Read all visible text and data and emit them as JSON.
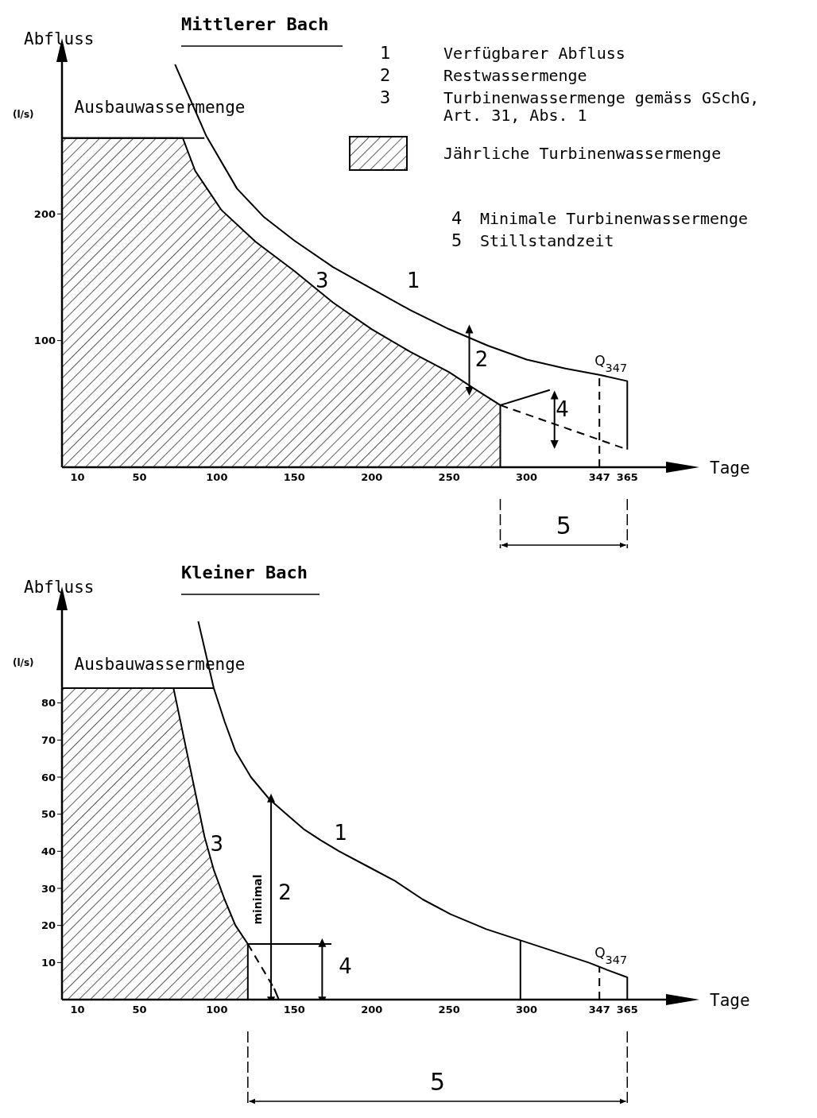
{
  "chart_data": [
    {
      "type": "line",
      "title": "Mittlerer Bach",
      "xlabel": "Tage",
      "ylabel": "Abfluss",
      "xlim": [
        0,
        390
      ],
      "ylim": [
        0,
        320
      ],
      "xticks": [
        10,
        50,
        100,
        150,
        200,
        250,
        300,
        347,
        365
      ],
      "yticks": [
        100,
        200
      ],
      "grid": false,
      "legend": "top right",
      "marker": "none",
      "line_style": "solid",
      "series": [
        {
          "color": "#000000",
          "x": [
            73,
            93,
            113,
            130,
            150,
            175,
            200,
            225,
            250,
            275,
            300,
            325,
            347,
            365,
            365
          ],
          "values": [
            318,
            262,
            220,
            198,
            179,
            158,
            141,
            124,
            109,
            96,
            85,
            78,
            73,
            68,
            14
          ]
        },
        {
          "type": "area",
          "name": "Jährliche Turbinenwassermenge",
          "color": "#000000",
          "x": [
            0,
            78,
            86,
            103,
            125,
            150,
            175,
            200,
            225,
            250,
            265,
            283,
            283
          ],
          "values": [
            260,
            260,
            234,
            203,
            178,
            155,
            130,
            109,
            91,
            75,
            63,
            49,
            0
          ]
        },
        {
          "color": "#000000",
          "x": [
            0,
            92
          ],
          "values": [
            260,
            260
          ]
        },
        {
          "color": "#000000",
          "line_style": "dashed",
          "x": [
            283,
            365
          ],
          "values": [
            49,
            14
          ]
        },
        {
          "color": "#000000",
          "x": [
            283,
            315
          ],
          "values": [
            49,
            61
          ]
        },
        {
          "color": "#000000",
          "marker": "triangle",
          "x": [
            318,
            318
          ],
          "values": [
            56,
            19
          ]
        },
        {
          "color": "#000000",
          "marker": "triangle",
          "x": [
            263,
            263
          ],
          "values": [
            108,
            61
          ]
        }
      ],
      "ref_lines": [
        {
          "axis": "x",
          "value": 347,
          "label": "Q$_{347}$",
          "line_style": "dashed"
        }
      ],
      "annotations": [
        "(l/s)",
        "1 Verfügbarer Abfluss",
        "2 Restwassermenge",
        "3 Turbinenwassermenge gemäss GSchG, Art. 31, Abs. 1",
        "4 Minimale Turbinenwassermenge",
        "5 Stillstandzeit",
        "Ausbauwassermenge",
        "3",
        "1",
        "2",
        "4",
        "5"
      ]
    },
    {
      "type": "line",
      "title": "Kleiner Bach",
      "xlabel": "Tage",
      "ylabel": "Abfluss",
      "xlim": [
        0,
        390
      ],
      "ylim": [
        0,
        105
      ],
      "xticks": [
        10,
        50,
        100,
        150,
        200,
        250,
        300,
        347,
        365
      ],
      "yticks": [
        10,
        20,
        30,
        40,
        50,
        60,
        70,
        80
      ],
      "grid": false,
      "marker": "none",
      "line_style": "solid",
      "series": [
        {
          "color": "#000000",
          "x": [
            88,
            98,
            105,
            112,
            122,
            134,
            145,
            156,
            167,
            179,
            197,
            215,
            233,
            251,
            274,
            296,
            318,
            340,
            352,
            365,
            365
          ],
          "values": [
            102,
            84,
            75,
            67,
            60,
            54,
            50,
            46,
            43,
            40,
            36,
            32,
            27,
            23,
            19,
            16,
            13,
            10,
            8,
            6,
            0
          ]
        },
        {
          "type": "area",
          "color": "#000000",
          "x": [
            0,
            72,
            77,
            82,
            87,
            92,
            98,
            105,
            112,
            120,
            120
          ],
          "values": [
            84,
            84,
            74,
            64,
            54,
            44,
            35,
            27,
            20,
            15,
            0
          ]
        },
        {
          "color": "#000000",
          "x": [
            0,
            98
          ],
          "values": [
            84,
            84
          ]
        },
        {
          "color": "#000000",
          "line_style": "dashed",
          "x": [
            120,
            137
          ],
          "values": [
            15,
            3
          ]
        },
        {
          "color": "#000000",
          "x": [
            137,
            140
          ],
          "values": [
            3,
            0
          ]
        },
        {
          "color": "#000000",
          "x": [
            120,
            174
          ],
          "values": [
            15,
            15
          ]
        },
        {
          "color": "#000000",
          "marker": "triangle",
          "x": [
            168,
            168
          ],
          "values": [
            15,
            0
          ]
        },
        {
          "color": "#000000",
          "x": [
            296,
            296
          ],
          "values": [
            0,
            16
          ]
        },
        {
          "name": "minimal",
          "color": "#000000",
          "marker": "triangle",
          "x": [
            135,
            135
          ],
          "values": [
            54,
            0
          ]
        }
      ],
      "ref_lines": [
        {
          "axis": "x",
          "value": 347,
          "label": "Q$_{347}$",
          "line_style": "dashed"
        }
      ],
      "annotations": [
        "(l/s)",
        "Ausbauwassermenge",
        "3",
        "1",
        "2",
        "4",
        "5"
      ]
    }
  ]
}
